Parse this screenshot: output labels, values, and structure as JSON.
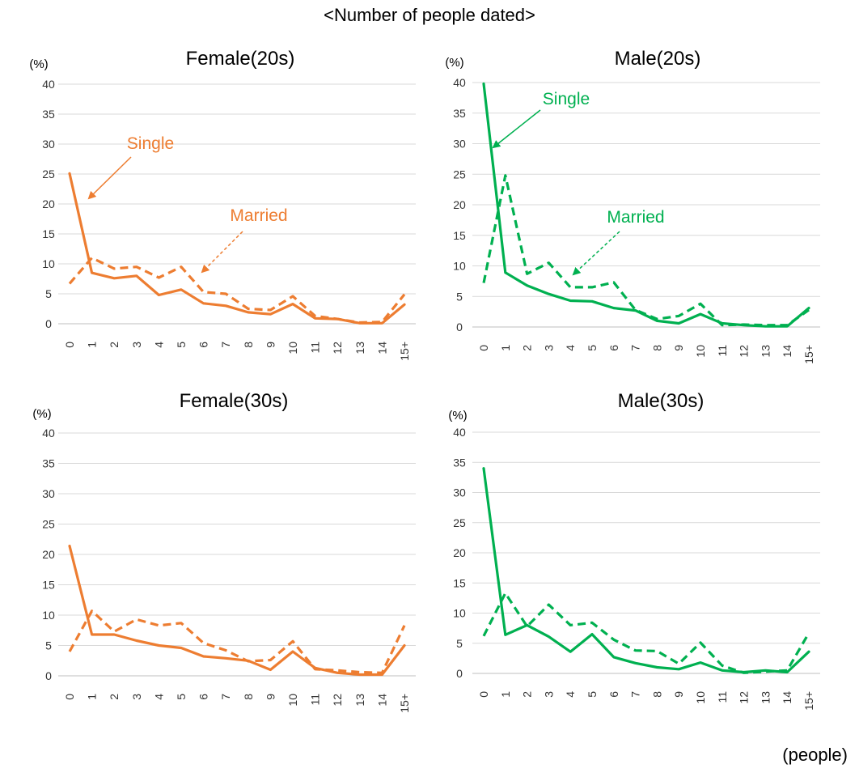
{
  "title": "<Number of people dated>",
  "x_unit": "(people)",
  "chart_data": [
    {
      "type": "line",
      "title": "Female(20s)",
      "ylabel": "(%)",
      "ylim": [
        0,
        40
      ],
      "yticks": [
        "0",
        "5",
        "10",
        "15",
        "20",
        "25",
        "30",
        "35",
        "40"
      ],
      "categories": [
        "0",
        "1",
        "2",
        "3",
        "4",
        "5",
        "6",
        "7",
        "8",
        "9",
        "10",
        "11",
        "12",
        "13",
        "14",
        "15+"
      ],
      "color": "#ED7D31",
      "series": [
        {
          "name": "Single",
          "style": "solid",
          "values": [
            25.1,
            8.5,
            7.6,
            8.0,
            4.8,
            5.7,
            3.4,
            3.0,
            1.9,
            1.6,
            3.3,
            0.9,
            0.8,
            0.1,
            0.1,
            3.2
          ]
        },
        {
          "name": "Married",
          "style": "dashed",
          "values": [
            6.7,
            11.0,
            9.2,
            9.5,
            7.7,
            9.5,
            5.3,
            5.0,
            2.5,
            2.3,
            4.6,
            1.3,
            0.8,
            0.2,
            0.3,
            4.9
          ]
        }
      ],
      "annotations": [
        {
          "text": "Single",
          "series": "Single"
        },
        {
          "text": "Married",
          "series": "Married"
        }
      ]
    },
    {
      "type": "line",
      "title": "Male(20s)",
      "ylabel": "(%)",
      "ylim": [
        0,
        40
      ],
      "yticks": [
        "0",
        "5",
        "10",
        "15",
        "20",
        "25",
        "30",
        "35",
        "40"
      ],
      "categories": [
        "0",
        "1",
        "2",
        "3",
        "4",
        "5",
        "6",
        "7",
        "8",
        "9",
        "10",
        "11",
        "12",
        "13",
        "14",
        "15+"
      ],
      "color": "#00B050",
      "series": [
        {
          "name": "Single",
          "style": "solid",
          "values": [
            39.8,
            8.9,
            6.8,
            5.4,
            4.3,
            4.2,
            3.1,
            2.7,
            1.0,
            0.6,
            2.1,
            0.6,
            0.3,
            0.1,
            0.1,
            3.1
          ]
        },
        {
          "name": "Married",
          "style": "dashed",
          "values": [
            7.2,
            24.8,
            8.7,
            10.5,
            6.5,
            6.5,
            7.3,
            2.8,
            1.3,
            1.8,
            3.8,
            0.3,
            0.4,
            0.3,
            0.3,
            2.8
          ]
        }
      ],
      "annotations": [
        {
          "text": "Single",
          "series": "Single"
        },
        {
          "text": "Married",
          "series": "Married"
        }
      ]
    },
    {
      "type": "line",
      "title": "Female(30s)",
      "ylabel": "(%)",
      "ylim": [
        0,
        40
      ],
      "yticks": [
        "0",
        "5",
        "10",
        "15",
        "20",
        "25",
        "30",
        "35",
        "40"
      ],
      "categories": [
        "0",
        "1",
        "2",
        "3",
        "4",
        "5",
        "6",
        "7",
        "8",
        "9",
        "10",
        "11",
        "12",
        "13",
        "14",
        "15+"
      ],
      "color": "#ED7D31",
      "series": [
        {
          "name": "Single",
          "style": "solid",
          "values": [
            21.4,
            6.8,
            6.8,
            5.8,
            5.0,
            4.6,
            3.2,
            2.9,
            2.5,
            1.0,
            4.0,
            1.3,
            0.5,
            0.2,
            0.2,
            5.0
          ]
        },
        {
          "name": "Married",
          "style": "dashed",
          "values": [
            4.0,
            10.7,
            7.3,
            9.3,
            8.3,
            8.7,
            5.4,
            4.2,
            2.4,
            2.6,
            5.7,
            1.1,
            0.9,
            0.6,
            0.5,
            8.3
          ]
        }
      ]
    },
    {
      "type": "line",
      "title": "Male(30s)",
      "ylabel": "(%)",
      "ylim": [
        0,
        40
      ],
      "yticks": [
        "0",
        "5",
        "10",
        "15",
        "20",
        "25",
        "30",
        "35",
        "40"
      ],
      "categories": [
        "0",
        "1",
        "2",
        "3",
        "4",
        "5",
        "6",
        "7",
        "8",
        "9",
        "10",
        "11",
        "12",
        "13",
        "14",
        "15+"
      ],
      "color": "#00B050",
      "series": [
        {
          "name": "Single",
          "style": "solid",
          "values": [
            34.0,
            6.4,
            8.0,
            6.1,
            3.6,
            6.5,
            2.7,
            1.7,
            1.0,
            0.7,
            1.8,
            0.5,
            0.2,
            0.5,
            0.2,
            3.6
          ]
        },
        {
          "name": "Married",
          "style": "dashed",
          "values": [
            6.2,
            13.3,
            7.8,
            11.4,
            8.0,
            8.4,
            5.6,
            3.8,
            3.7,
            1.6,
            5.1,
            1.3,
            0.1,
            0.3,
            0.5,
            6.7
          ]
        }
      ]
    }
  ]
}
